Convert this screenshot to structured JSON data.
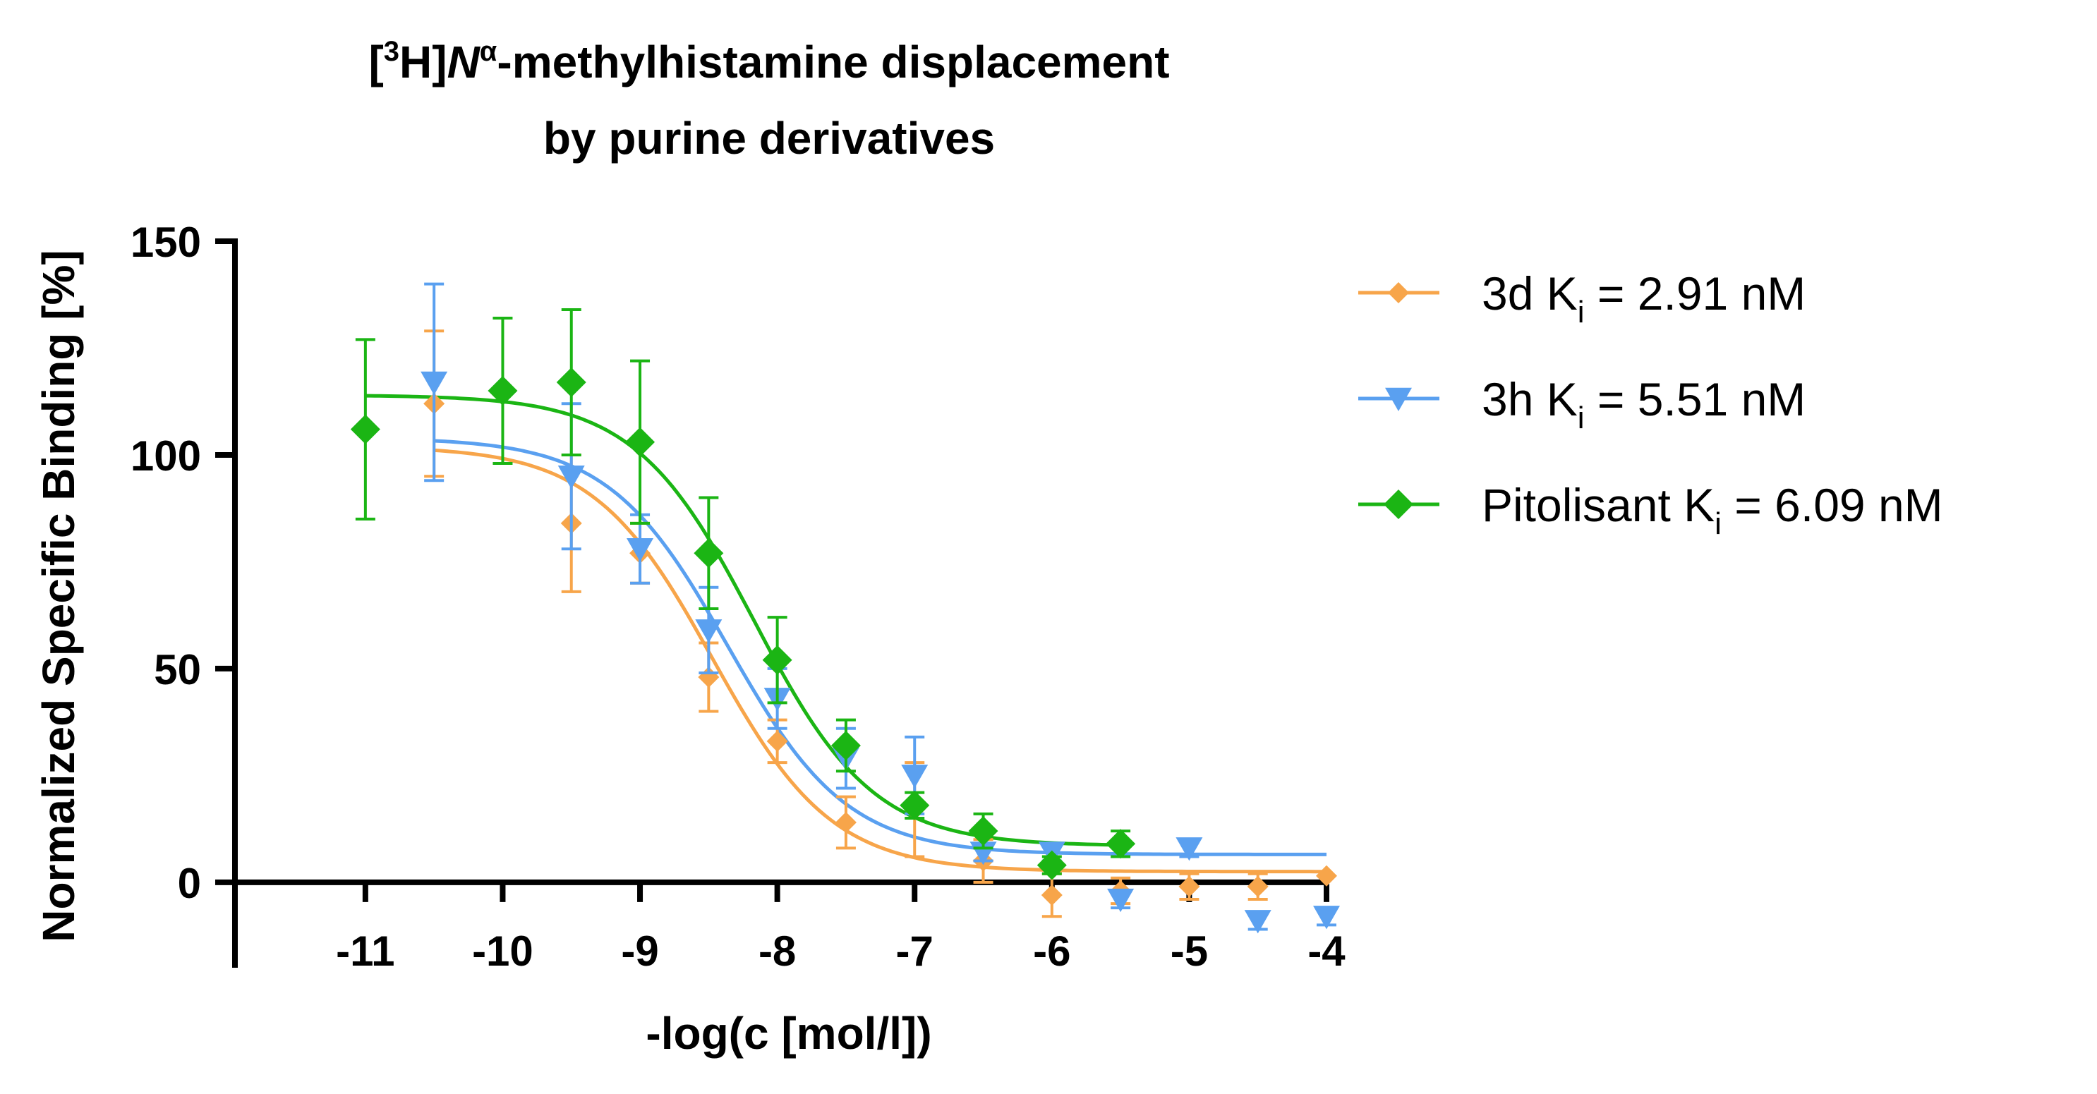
{
  "chart_data": {
    "type": "scatter",
    "title": {
      "pre": "[",
      "superscript": "3",
      "mid": "H]",
      "italic": "N",
      "alpha": "α",
      "post": "-methylhistamine displacement",
      "line2": "by purine derivatives"
    },
    "xlabel": "-log(c [mol/l])",
    "ylabel": "Normalized Specific Binding [%]",
    "xlim": [
      -11.95,
      -4
    ],
    "ylim": [
      -20,
      150
    ],
    "x_ticks": [
      -11,
      -10,
      -9,
      -8,
      -7,
      -6,
      -5,
      -4
    ],
    "x_tick_labels": [
      "-11",
      "-10",
      "-9",
      "-8",
      "-7",
      "-6",
      "-5",
      "-4"
    ],
    "y_ticks": [
      0,
      50,
      100,
      150
    ],
    "y_tick_labels": [
      "0",
      "50",
      "100",
      "150"
    ],
    "series": [
      {
        "name": "3d",
        "label_prefix": "3d K",
        "label_sub": "i",
        "label_suffix": " = 2.91 nM",
        "color": "#f7a54a",
        "marker": "diamond-small",
        "fit": {
          "top": 102,
          "bottom": 2.5,
          "logEC50": -8.47,
          "hill": -1.0,
          "x_start": -10.5,
          "x_end": -4
        },
        "points": [
          {
            "x": -10.5,
            "y": 112,
            "err": 17
          },
          {
            "x": -9.5,
            "y": 84,
            "err": 16
          },
          {
            "x": -9.0,
            "y": 77,
            "err": 7
          },
          {
            "x": -8.5,
            "y": 48,
            "err": 8
          },
          {
            "x": -8.0,
            "y": 33,
            "err": 5
          },
          {
            "x": -7.5,
            "y": 14,
            "err": 6
          },
          {
            "x": -7.0,
            "y": 17,
            "err": 11
          },
          {
            "x": -6.5,
            "y": 5,
            "err": 5
          },
          {
            "x": -6.0,
            "y": -3,
            "err": 5
          },
          {
            "x": -5.5,
            "y": -2,
            "err": 3
          },
          {
            "x": -5.0,
            "y": -1,
            "err": 3
          },
          {
            "x": -4.5,
            "y": -1,
            "err": 3
          },
          {
            "x": -4.0,
            "y": 1.5,
            "err": 0
          }
        ]
      },
      {
        "name": "3h",
        "label_prefix": "3h K",
        "label_sub": "i",
        "label_suffix": " = 5.51 nM",
        "color": "#5aa0f0",
        "marker": "triangle-down",
        "fit": {
          "top": 104,
          "bottom": 6.5,
          "logEC50": -8.36,
          "hill": -1.0,
          "x_start": -10.5,
          "x_end": -4
        },
        "points": [
          {
            "x": -10.5,
            "y": 117,
            "err": 23
          },
          {
            "x": -9.5,
            "y": 95,
            "err": 17
          },
          {
            "x": -9.0,
            "y": 78,
            "err": 8
          },
          {
            "x": -8.5,
            "y": 59,
            "err": 10
          },
          {
            "x": -8.0,
            "y": 43,
            "err": 7
          },
          {
            "x": -7.5,
            "y": 29,
            "err": 7
          },
          {
            "x": -7.0,
            "y": 25,
            "err": 9
          },
          {
            "x": -6.5,
            "y": 7,
            "err": 2
          },
          {
            "x": -6.0,
            "y": 7,
            "err": 2
          },
          {
            "x": -5.5,
            "y": -4,
            "err": 2
          },
          {
            "x": -5.0,
            "y": 8,
            "err": 2
          },
          {
            "x": -4.5,
            "y": -9,
            "err": 2
          },
          {
            "x": -4.0,
            "y": -8,
            "err": 2
          }
        ]
      },
      {
        "name": "Pitolisant",
        "label_prefix": "Pitolisant K",
        "label_sub": "i",
        "label_suffix": " = 6.09 nM",
        "color": "#1bb514",
        "marker": "diamond",
        "fit": {
          "top": 114,
          "bottom": 8.5,
          "logEC50": -8.17,
          "hill": -1.0,
          "x_start": -11,
          "x_end": -5.5
        },
        "points": [
          {
            "x": -11.0,
            "y": 106,
            "err": 21
          },
          {
            "x": -10.0,
            "y": 115,
            "err": 17
          },
          {
            "x": -9.5,
            "y": 117,
            "err": 17
          },
          {
            "x": -9.0,
            "y": 103,
            "err": 19
          },
          {
            "x": -8.5,
            "y": 77,
            "err": 13
          },
          {
            "x": -8.0,
            "y": 52,
            "err": 10
          },
          {
            "x": -7.5,
            "y": 32,
            "err": 6
          },
          {
            "x": -7.0,
            "y": 18,
            "err": 3
          },
          {
            "x": -6.5,
            "y": 12,
            "err": 4
          },
          {
            "x": -6.0,
            "y": 4,
            "err": 2
          },
          {
            "x": -5.5,
            "y": 9,
            "err": 3
          }
        ]
      }
    ],
    "legend_position": "top-right"
  }
}
